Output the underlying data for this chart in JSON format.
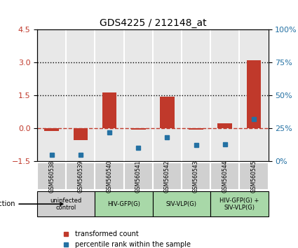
{
  "title": "GDS4225 / 212148_at",
  "samples": [
    "GSM560538",
    "GSM560539",
    "GSM560540",
    "GSM560541",
    "GSM560542",
    "GSM560543",
    "GSM560544",
    "GSM560545"
  ],
  "bar_values": [
    -0.13,
    -0.55,
    1.62,
    -0.05,
    1.45,
    -0.05,
    0.22,
    3.12
  ],
  "dot_values": [
    5,
    5,
    22,
    10,
    18,
    12,
    13,
    32
  ],
  "ylim_left": [
    -1.5,
    4.5
  ],
  "ylim_right": [
    0,
    100
  ],
  "yticks_left": [
    -1.5,
    0,
    1.5,
    3,
    4.5
  ],
  "yticks_right": [
    0,
    25,
    50,
    75,
    100
  ],
  "yticklabels_right": [
    "0%",
    "25%",
    "50%",
    "75%",
    "100%"
  ],
  "hlines": [
    1.5,
    3.0
  ],
  "bar_color": "#c0392b",
  "dot_color": "#2471a3",
  "dashed_line_color": "#c0392b",
  "infection_groups": [
    {
      "label": "uninfected\ncontrol",
      "start": 0,
      "end": 2,
      "color": "#d0d0d0"
    },
    {
      "label": "HIV-GFP(G)",
      "start": 2,
      "end": 4,
      "color": "#a8d8a8"
    },
    {
      "label": "SIV-VLP(G)",
      "start": 4,
      "end": 6,
      "color": "#a8d8a8"
    },
    {
      "label": "HIV-GFP(G) +\nSIV-VLP(G)",
      "start": 6,
      "end": 8,
      "color": "#a8d8a8"
    }
  ],
  "xlabel_infection": "infection",
  "legend_red_label": "transformed count",
  "legend_blue_label": "percentile rank within the sample",
  "background_color": "#ffffff",
  "plot_bg_color": "#e8e8e8",
  "fig_width": 4.25,
  "fig_height": 3.54
}
